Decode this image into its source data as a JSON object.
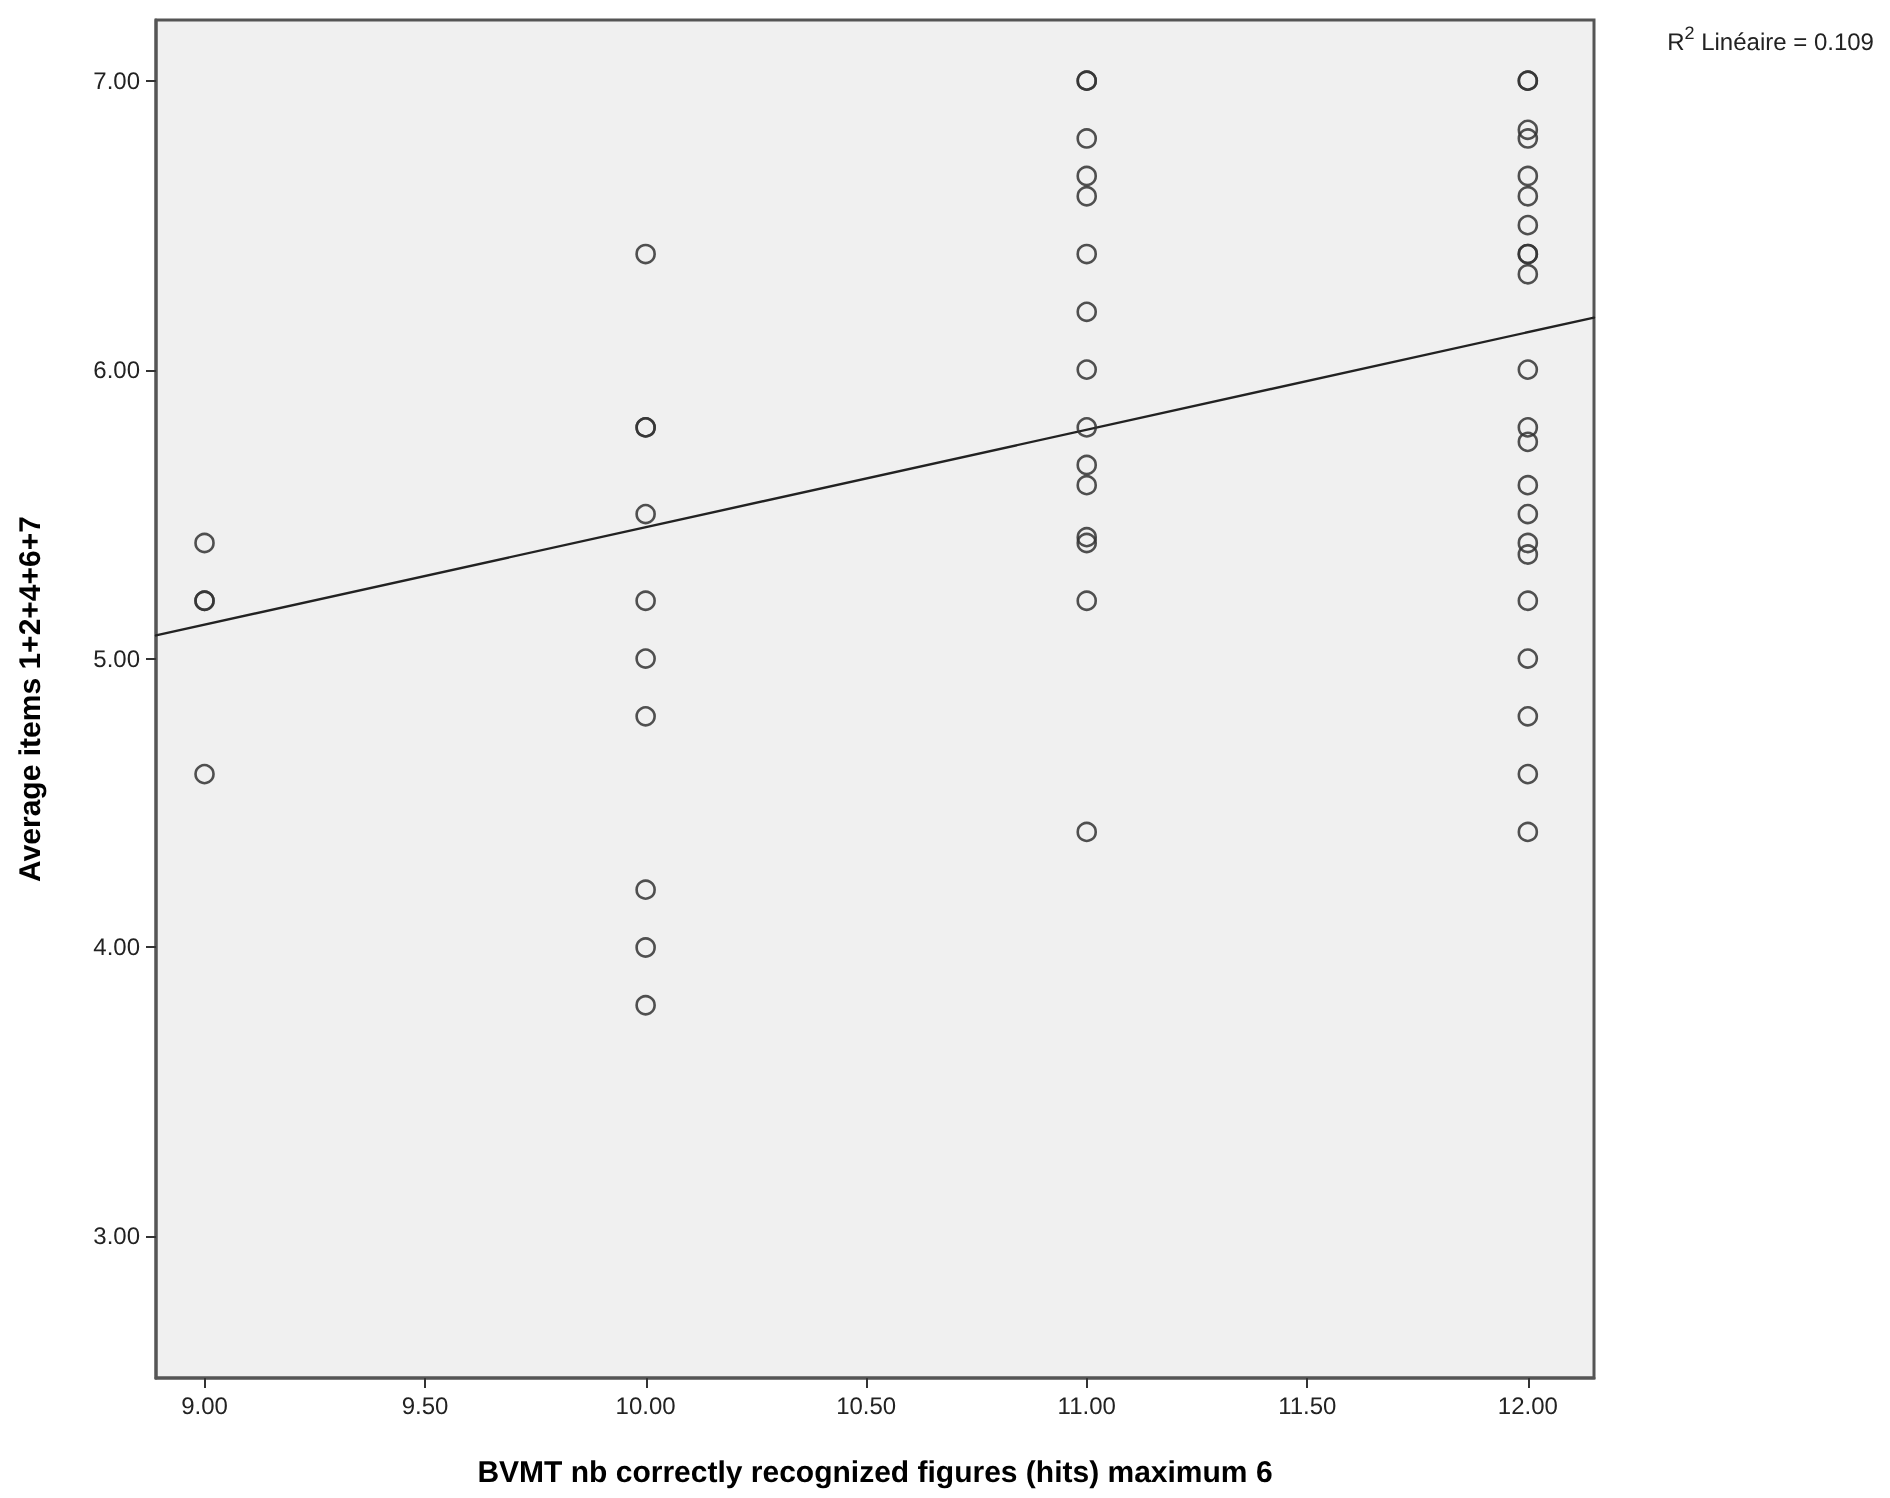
{
  "chart_data": {
    "type": "scatter",
    "xlabel": "BVMT nb correctly recognized figures (hits) maximum 6",
    "ylabel": "Average items 1+2+4+6+7",
    "xlim": [
      8.89,
      12.15
    ],
    "ylim": [
      2.51,
      7.21
    ],
    "xticks": [
      {
        "value": 9,
        "label": "9.00"
      },
      {
        "value": 9.5,
        "label": "9.50"
      },
      {
        "value": 10,
        "label": "10.00"
      },
      {
        "value": 10.5,
        "label": "10.50"
      },
      {
        "value": 11,
        "label": "11.00"
      },
      {
        "value": 11.5,
        "label": "11.50"
      },
      {
        "value": 12,
        "label": "12.00"
      }
    ],
    "yticks": [
      {
        "value": 3,
        "label": "3.00"
      },
      {
        "value": 4,
        "label": "4.00"
      },
      {
        "value": 5,
        "label": "5.00"
      },
      {
        "value": 6,
        "label": "6.00"
      },
      {
        "value": 7,
        "label": "7.00"
      }
    ],
    "grid": false,
    "marker": "circle",
    "annotations": [
      "R$^{2}$ Linéaire = 0.109"
    ],
    "series": [
      {
        "color": "#333333",
        "x": [
          9,
          9,
          9,
          9,
          10,
          10,
          10,
          10,
          10,
          10,
          10,
          10,
          10,
          10,
          11,
          11,
          11,
          11,
          11,
          11,
          11,
          11,
          11,
          11,
          11,
          11,
          11,
          11,
          11,
          12,
          12,
          12,
          12,
          12,
          12,
          12,
          12,
          12,
          12,
          12,
          12,
          12,
          12,
          12,
          12,
          12,
          12,
          12,
          12,
          12,
          12
        ],
        "values": [
          5.4,
          5.2,
          5.2,
          4.6,
          6.4,
          5.8,
          5.8,
          5.5,
          5.2,
          5.0,
          4.8,
          4.2,
          4.0,
          3.8,
          7.0,
          7.0,
          6.8,
          6.67,
          6.6,
          6.4,
          6.2,
          6.0,
          5.8,
          5.67,
          5.6,
          5.42,
          5.4,
          5.2,
          4.4,
          7.0,
          7.0,
          6.83,
          6.8,
          6.67,
          6.6,
          6.5,
          6.4,
          6.4,
          6.33,
          6.0,
          5.8,
          5.75,
          5.6,
          5.5,
          5.4,
          5.36,
          5.2,
          5.0,
          4.8,
          4.6,
          4.4
        ]
      },
      {
        "type": "line",
        "color": "#222222",
        "line_style": "solid",
        "marker": "none",
        "x": [
          8.89,
          12.15
        ],
        "values": [
          5.08,
          6.18
        ]
      }
    ]
  }
}
